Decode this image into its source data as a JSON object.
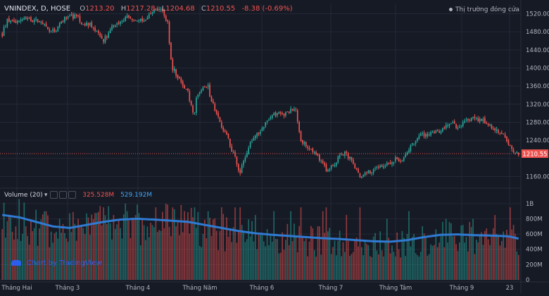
{
  "header": {
    "symbol": "VNINDEX, D, HOSE",
    "open_label": "O",
    "open": "1213.20",
    "high_label": "H",
    "high": "1217.28",
    "low_label": "L",
    "low": "1204.68",
    "close_label": "C",
    "close": "1210.55",
    "change": "-8.38 (-0.69%)",
    "market_status": "Thị trường đóng cửa"
  },
  "volume_header": {
    "label": "Volume (20)",
    "volume": "325.528M",
    "ma": "529.192M"
  },
  "watermark": "Chart by TradingView",
  "colors": {
    "background": "#161a25",
    "up": "#26a69a",
    "down": "#ef5350",
    "volume_ma": "#2f7bd3",
    "grid": "#242836",
    "text": "#b2b5be"
  },
  "chart_data": [
    {
      "type": "candlestick",
      "title": "VNINDEX, D, HOSE",
      "y_ticks": [
        1160,
        1200,
        1240,
        1280,
        1320,
        1360,
        1400,
        1440,
        1480,
        1520
      ],
      "ylim": [
        1142,
        1541
      ],
      "x_tick_labels": [
        "Tháng Hai",
        "Tháng 3",
        "Tháng 4",
        "Tháng Năm",
        "Tháng 6",
        "Tháng 7",
        "Tháng Tám",
        "Tháng 9",
        "23"
      ],
      "last_price": "1210.55",
      "close_path": [
        [
          0,
          1475
        ],
        [
          3,
          1505
        ],
        [
          7,
          1505
        ],
        [
          12,
          1508
        ],
        [
          17,
          1505
        ],
        [
          22,
          1505
        ],
        [
          28,
          1480
        ],
        [
          32,
          1485
        ],
        [
          36,
          1505
        ],
        [
          40,
          1515
        ],
        [
          44,
          1512
        ],
        [
          48,
          1498
        ],
        [
          52,
          1495
        ],
        [
          56,
          1480
        ],
        [
          60,
          1460
        ],
        [
          65,
          1490
        ],
        [
          70,
          1505
        ],
        [
          75,
          1515
        ],
        [
          80,
          1505
        ],
        [
          85,
          1508
        ],
        [
          90,
          1530
        ],
        [
          95,
          1528
        ],
        [
          98,
          1500
        ],
        [
          100,
          1420
        ],
        [
          103,
          1388
        ],
        [
          106,
          1370
        ],
        [
          110,
          1345
        ],
        [
          113,
          1305
        ],
        [
          115,
          1335
        ],
        [
          118,
          1355
        ],
        [
          121,
          1360
        ],
        [
          124,
          1330
        ],
        [
          127,
          1300
        ],
        [
          130,
          1270
        ],
        [
          133,
          1250
        ],
        [
          137,
          1210
        ],
        [
          140,
          1175
        ],
        [
          143,
          1195
        ],
        [
          147,
          1235
        ],
        [
          150,
          1248
        ],
        [
          153,
          1262
        ],
        [
          157,
          1285
        ],
        [
          160,
          1298
        ],
        [
          164,
          1298
        ],
        [
          167,
          1295
        ],
        [
          171,
          1308
        ],
        [
          174,
          1303
        ],
        [
          177,
          1240
        ],
        [
          181,
          1225
        ],
        [
          185,
          1215
        ],
        [
          189,
          1195
        ],
        [
          192,
          1175
        ],
        [
          196,
          1185
        ],
        [
          199,
          1200
        ],
        [
          203,
          1210
        ],
        [
          206,
          1200
        ],
        [
          210,
          1175
        ],
        [
          213,
          1160
        ],
        [
          216,
          1168
        ],
        [
          220,
          1175
        ],
        [
          223,
          1180
        ],
        [
          226,
          1185
        ],
        [
          230,
          1190
        ],
        [
          233,
          1200
        ],
        [
          236,
          1195
        ],
        [
          240,
          1215
        ],
        [
          244,
          1235
        ],
        [
          247,
          1250
        ],
        [
          251,
          1252
        ],
        [
          255,
          1255
        ],
        [
          259,
          1260
        ],
        [
          263,
          1272
        ],
        [
          267,
          1278
        ],
        [
          271,
          1265
        ],
        [
          274,
          1280
        ],
        [
          278,
          1290
        ],
        [
          282,
          1285
        ],
        [
          286,
          1282
        ],
        [
          290,
          1270
        ],
        [
          293,
          1262
        ],
        [
          297,
          1255
        ],
        [
          300,
          1230
        ],
        [
          303,
          1215
        ],
        [
          306,
          1212
        ]
      ],
      "markers": [
        {
          "d": 8,
          "c": 1500,
          "v": 0.7
        },
        {
          "d": 26,
          "c": 1492,
          "v": 0.9
        },
        {
          "d": 45,
          "c": 1515,
          "v": 0.8
        },
        {
          "d": 60,
          "c": 1458,
          "v": 0.95
        },
        {
          "d": 66,
          "c": 1492,
          "v": 0.85
        },
        {
          "d": 74,
          "c": 1516,
          "v": 0.9
        },
        {
          "d": 91,
          "c": 1528,
          "v": 0.95
        },
        {
          "d": 101,
          "c": 1395,
          "v": 0.95
        },
        {
          "d": 108,
          "c": 1355,
          "v": 0.9
        },
        {
          "d": 114,
          "c": 1302,
          "v": 0.95
        },
        {
          "d": 122,
          "c": 1362,
          "v": 0.9
        },
        {
          "d": 130,
          "c": 1268,
          "v": 0.95
        },
        {
          "d": 138,
          "c": 1205,
          "v": 0.95
        },
        {
          "d": 141,
          "c": 1168,
          "v": 0.95
        },
        {
          "d": 150,
          "c": 1250,
          "v": 0.85
        },
        {
          "d": 161,
          "c": 1300,
          "v": 0.9
        },
        {
          "d": 171,
          "c": 1310,
          "v": 0.9
        },
        {
          "d": 177,
          "c": 1238,
          "v": 0.95
        },
        {
          "d": 190,
          "c": 1190,
          "v": 0.9
        },
        {
          "d": 192,
          "c": 1172,
          "v": 0.95
        },
        {
          "d": 204,
          "c": 1212,
          "v": 0.85
        },
        {
          "d": 212,
          "c": 1158,
          "v": 0.95
        },
        {
          "d": 228,
          "c": 1190,
          "v": 0.8
        },
        {
          "d": 241,
          "c": 1218,
          "v": 0.9
        },
        {
          "d": 263,
          "c": 1274,
          "v": 0.8
        },
        {
          "d": 279,
          "c": 1292,
          "v": 0.8
        },
        {
          "d": 292,
          "c": 1262,
          "v": 0.85
        },
        {
          "d": 301,
          "c": 1228,
          "v": 0.95
        }
      ]
    },
    {
      "type": "bar",
      "title": "Volume (20)",
      "y_ticks": [
        0,
        200,
        400,
        600,
        800,
        1000
      ],
      "y_tick_labels": [
        "0",
        "200M",
        "400M",
        "600M",
        "800M",
        "1B"
      ],
      "ylim": [
        0,
        1100
      ],
      "unit": "M",
      "last_volume": 325.528,
      "last_ma": 529.192,
      "ma_path": [
        [
          0,
          850
        ],
        [
          10,
          820
        ],
        [
          20,
          760
        ],
        [
          30,
          700
        ],
        [
          40,
          680
        ],
        [
          50,
          720
        ],
        [
          60,
          760
        ],
        [
          70,
          790
        ],
        [
          80,
          800
        ],
        [
          90,
          790
        ],
        [
          100,
          775
        ],
        [
          110,
          760
        ],
        [
          120,
          720
        ],
        [
          130,
          680
        ],
        [
          140,
          640
        ],
        [
          150,
          610
        ],
        [
          160,
          590
        ],
        [
          170,
          575
        ],
        [
          180,
          560
        ],
        [
          190,
          545
        ],
        [
          200,
          535
        ],
        [
          210,
          520
        ],
        [
          220,
          505
        ],
        [
          230,
          500
        ],
        [
          240,
          520
        ],
        [
          250,
          560
        ],
        [
          260,
          590
        ],
        [
          270,
          595
        ],
        [
          280,
          585
        ],
        [
          290,
          580
        ],
        [
          300,
          570
        ],
        [
          306,
          540
        ]
      ]
    }
  ]
}
